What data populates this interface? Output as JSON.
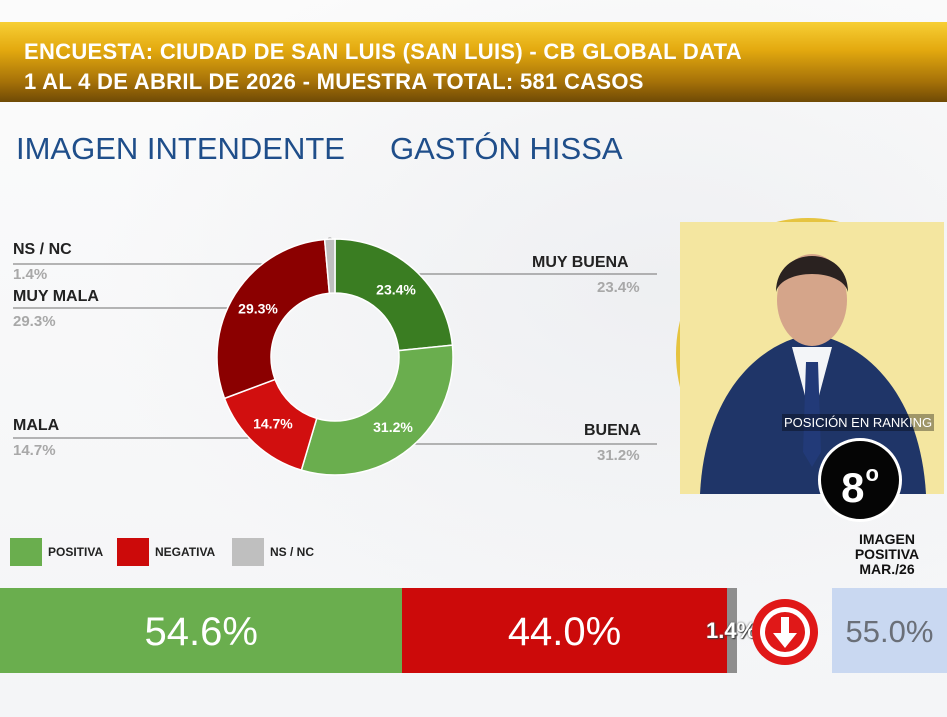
{
  "header": {
    "line1": "ENCUESTA: CIUDAD DE SAN LUIS (SAN LUIS) - CB GLOBAL DATA",
    "line2": "1 AL 4 DE ABRIL DE 2026 - MUESTRA TOTAL: 581 CASOS"
  },
  "title": {
    "subject": "IMAGEN INTENDENTE",
    "person": "GASTÓN HISSA"
  },
  "colors": {
    "header_gold": "#e3a90f",
    "title_blue": "#1f4e8a",
    "muy_buena": "#3a7d22",
    "buena": "#6aae4e",
    "mala": "#d10f0f",
    "muy_mala": "#8b0000",
    "nsnc": "#bfbfbf",
    "positiva": "#6aae4e",
    "negativa": "#cc0a0a",
    "prev_box": "#c9d8f1",
    "arrow_red": "#e01818"
  },
  "chart_data": [
    {
      "type": "pie",
      "variant": "donut",
      "slices": [
        {
          "name": "MUY BUENA",
          "value": 23.4,
          "value_label": "23.4%",
          "color": "#3a7d22"
        },
        {
          "name": "BUENA",
          "value": 31.2,
          "value_label": "31.2%",
          "color": "#6aae4e"
        },
        {
          "name": "MALA",
          "value": 14.7,
          "value_label": "14.7%",
          "color": "#d10f0f"
        },
        {
          "name": "MUY MALA",
          "value": 29.3,
          "value_label": "29.3%",
          "color": "#8b0000"
        },
        {
          "name": "NS / NC",
          "value": 1.4,
          "value_label": "1.4%",
          "color": "#bfbfbf"
        }
      ]
    },
    {
      "type": "bar",
      "variant": "stacked-horizontal",
      "legend": [
        {
          "name": "POSITIVA",
          "color": "#6aae4e"
        },
        {
          "name": "NEGATIVA",
          "color": "#cc0a0a"
        },
        {
          "name": "NS / NC",
          "color": "#bfbfbf"
        }
      ],
      "segments": [
        {
          "name": "POSITIVA",
          "value": 54.6,
          "value_label": "54.6%"
        },
        {
          "name": "NEGATIVA",
          "value": 44.0,
          "value_label": "44.0%"
        },
        {
          "name": "NS / NC",
          "value": 1.4,
          "value_label": "1.4%"
        }
      ]
    }
  ],
  "ranking": {
    "label": "POSICIÓN EN RANKING",
    "number": "8",
    "suffix": "o"
  },
  "previous": {
    "label_line1": "IMAGEN",
    "label_line2": "POSITIVA",
    "label_line3": "MAR./26",
    "value": "55.0%",
    "trend_icon": "arrow-down-icon"
  }
}
